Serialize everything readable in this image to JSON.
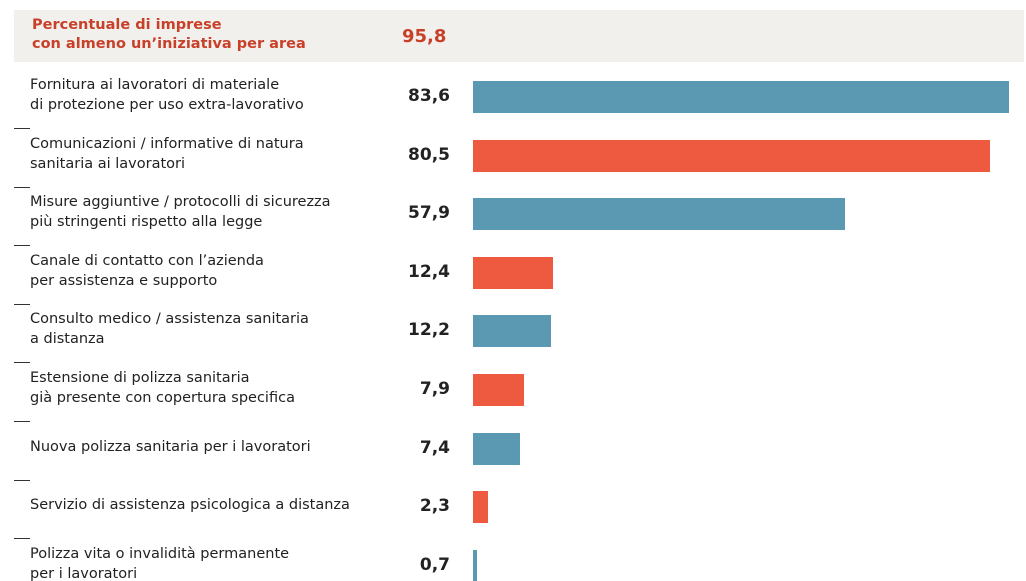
{
  "chart_data": {
    "type": "bar",
    "orientation": "horizontal",
    "header_label": "Percentuale di imprese\ncon almeno un’iniziativa per area",
    "header_value": "95,8",
    "categories": [
      "Fornitura ai lavoratori di materiale\ndi protezione per uso extra-lavorativo",
      "Comunicazioni / informative di natura\nsanitaria ai lavoratori",
      "Misure aggiuntive / protocolli di sicurezza\npiù stringenti rispetto alla legge",
      "Canale di contatto con l’azienda\nper assistenza e supporto",
      "Consulto medico / assistenza sanitaria\na distanza",
      "Estensione di polizza sanitaria\ngià presente con copertura specifica",
      "Nuova polizza sanitaria per i lavoratori",
      "Servizio di assistenza psicologica a distanza",
      "Polizza vita o invalidità permanente\nper i lavoratori"
    ],
    "values": [
      83.6,
      80.5,
      57.9,
      12.4,
      12.2,
      7.9,
      7.4,
      2.3,
      0.7
    ],
    "value_labels": [
      "83,6",
      "80,5",
      "57,9",
      "12,4",
      "12,2",
      "7,9",
      "7,4",
      "2,3",
      "0,7"
    ],
    "colors": [
      "#5b99b2",
      "#ee5a40",
      "#5b99b2",
      "#ee5a40",
      "#5b99b2",
      "#ee5a40",
      "#5b99b2",
      "#ee5a40",
      "#5b99b2"
    ],
    "xlim": [
      0,
      84
    ]
  }
}
